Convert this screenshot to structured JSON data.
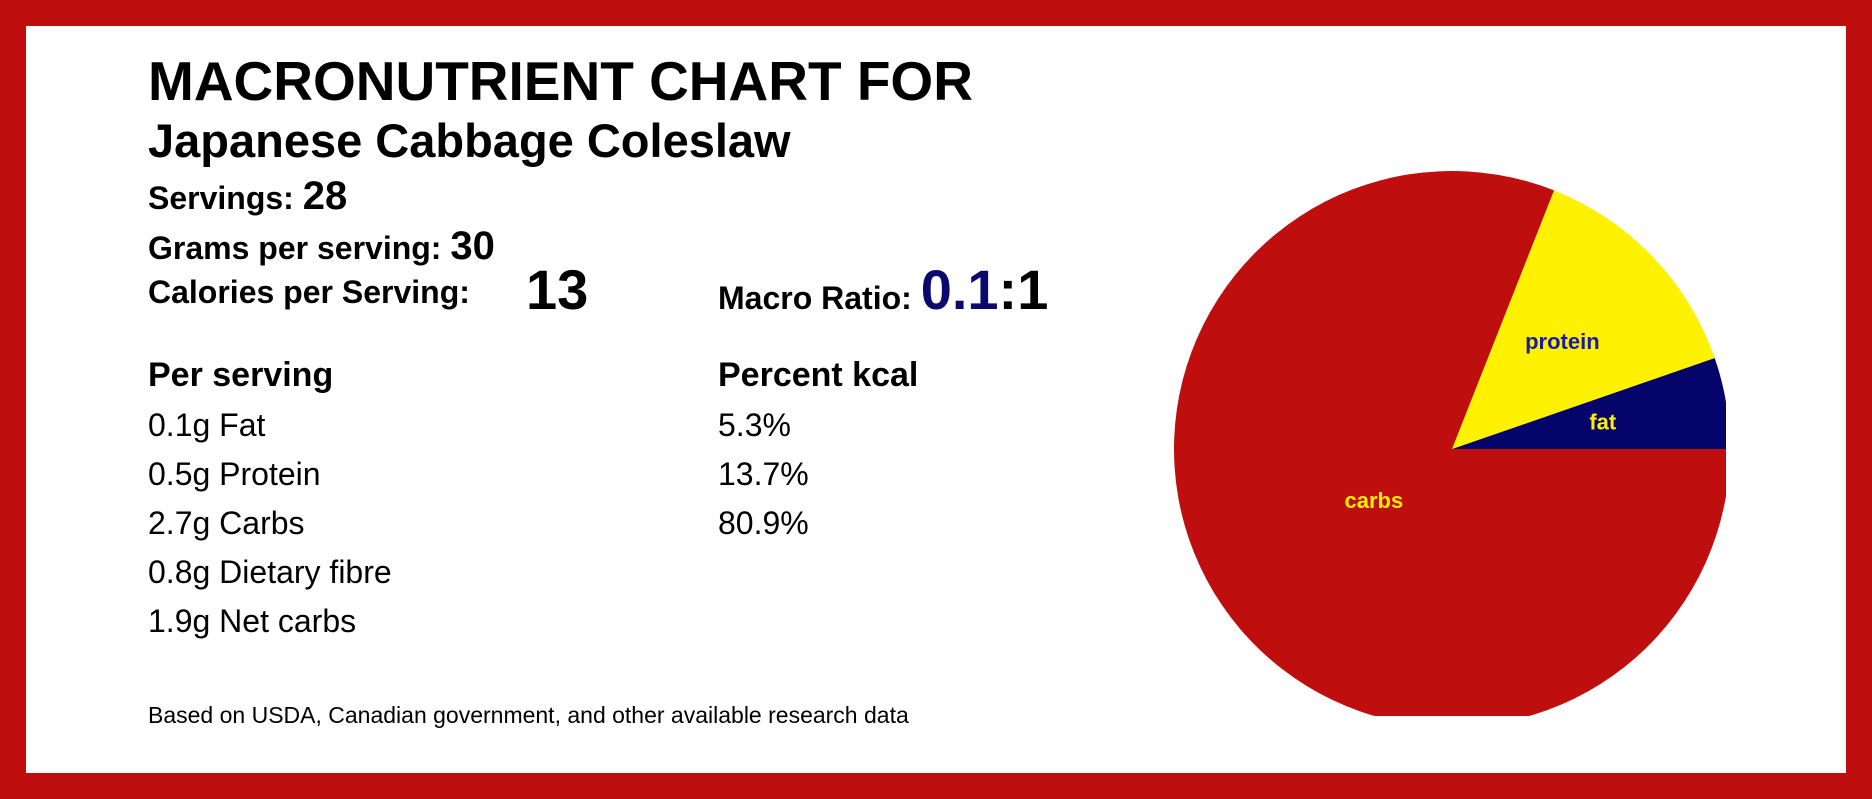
{
  "header": {
    "title": "MACRONUTRIENT CHART FOR",
    "subtitle": "Japanese Cabbage Coleslaw"
  },
  "stats": {
    "servings_label": "Servings:",
    "servings_value": "28",
    "grams_label": "Grams per serving:",
    "grams_value": "30",
    "calories_label": "Calories per Serving:",
    "calories_value": "13",
    "ratio_label": "Macro Ratio:",
    "ratio_value": "0.1",
    "ratio_suffix": ":1"
  },
  "per_serving": {
    "heading": "Per serving",
    "items": [
      "0.1g Fat",
      "0.5g Protein",
      "2.7g Carbs",
      "0.8g Dietary fibre",
      "1.9g Net carbs"
    ]
  },
  "percent_kcal": {
    "heading": "Percent kcal",
    "items": [
      "5.3%",
      "13.7%",
      "80.9%"
    ]
  },
  "footnote": "Based on USDA, Canadian government, and other available research data",
  "colors": {
    "border": "#be0e0e",
    "fat": "#04046a",
    "protein": "#fff200",
    "carbs": "#be0e0e",
    "ratio_accent": "#0a0a6e",
    "label_yellow": "#ffee00",
    "label_blue": "#1a1aa6"
  },
  "chart_data": {
    "type": "pie",
    "title": "",
    "slices": [
      {
        "label": "fat",
        "value": 5.3,
        "color": "#04046a",
        "label_color": "#ffee00"
      },
      {
        "label": "protein",
        "value": 13.7,
        "color": "#fff200",
        "label_color": "#1a1aa6"
      },
      {
        "label": "carbs",
        "value": 80.9,
        "color": "#be0e0e",
        "label_color": "#ffee00"
      }
    ],
    "start": "3 o'clock",
    "direction": "counterclockwise"
  }
}
